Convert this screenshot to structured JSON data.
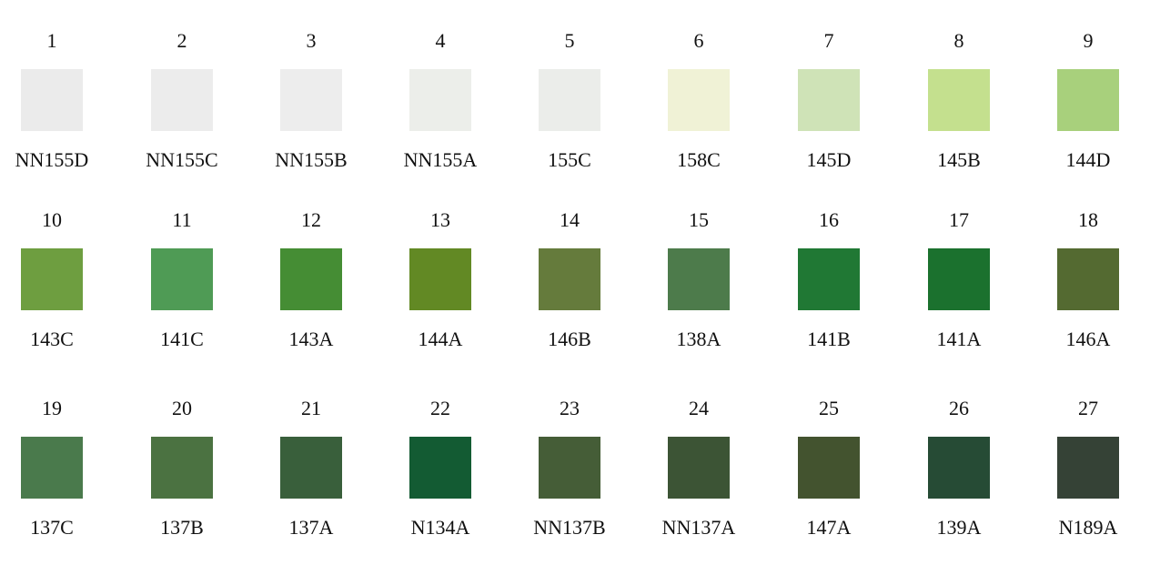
{
  "swatches": [
    {
      "number": "1",
      "code": "NN155D",
      "color": "#ebebeb"
    },
    {
      "number": "2",
      "code": "NN155C",
      "color": "#ececec"
    },
    {
      "number": "3",
      "code": "NN155B",
      "color": "#ededed"
    },
    {
      "number": "4",
      "code": "NN155A",
      "color": "#eceeea"
    },
    {
      "number": "5",
      "code": "155C",
      "color": "#ebedea"
    },
    {
      "number": "6",
      "code": "158C",
      "color": "#f0f2d6"
    },
    {
      "number": "7",
      "code": "145D",
      "color": "#cfe3b7"
    },
    {
      "number": "8",
      "code": "145B",
      "color": "#c4e08e"
    },
    {
      "number": "9",
      "code": "144D",
      "color": "#a8d07c"
    },
    {
      "number": "10",
      "code": "143C",
      "color": "#6e9e40"
    },
    {
      "number": "11",
      "code": "141C",
      "color": "#4f9b55"
    },
    {
      "number": "12",
      "code": "143A",
      "color": "#458d34"
    },
    {
      "number": "13",
      "code": "144A",
      "color": "#628924"
    },
    {
      "number": "14",
      "code": "146B",
      "color": "#657b3c"
    },
    {
      "number": "15",
      "code": "138A",
      "color": "#4d7b4b"
    },
    {
      "number": "16",
      "code": "141B",
      "color": "#207834"
    },
    {
      "number": "17",
      "code": "141A",
      "color": "#1b712e"
    },
    {
      "number": "18",
      "code": "146A",
      "color": "#546a31"
    },
    {
      "number": "19",
      "code": "137C",
      "color": "#4a7a4c"
    },
    {
      "number": "20",
      "code": "137B",
      "color": "#4b7241"
    },
    {
      "number": "21",
      "code": "137A",
      "color": "#395f3b"
    },
    {
      "number": "22",
      "code": "N134A",
      "color": "#135b33"
    },
    {
      "number": "23",
      "code": "NN137B",
      "color": "#455d37"
    },
    {
      "number": "24",
      "code": "NN137A",
      "color": "#3c5435"
    },
    {
      "number": "25",
      "code": "147A",
      "color": "#43532f"
    },
    {
      "number": "26",
      "code": "139A",
      "color": "#264b35"
    },
    {
      "number": "27",
      "code": "N189A",
      "color": "#354236"
    }
  ]
}
